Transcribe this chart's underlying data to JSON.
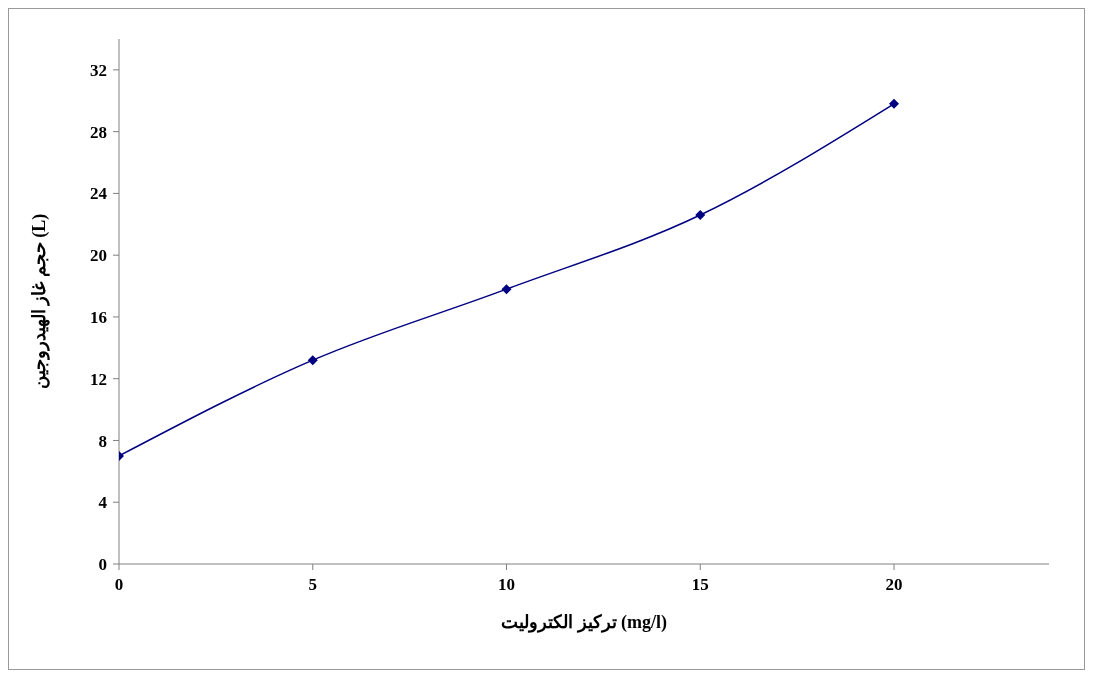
{
  "chart_data": {
    "type": "line",
    "xlabel": "تركيز الكتروليت (mg/l)",
    "ylabel": "حجم غاز الهيدروجين (L)",
    "x": [
      0,
      5,
      10,
      15,
      20
    ],
    "series": [
      {
        "color": "#000080",
        "values": [
          7.0,
          13.2,
          17.8,
          22.6,
          29.8
        ]
      }
    ],
    "xlim": [
      0,
      24
    ],
    "xticks": [
      0,
      5,
      10,
      15,
      20
    ],
    "ylim": [
      0,
      34
    ],
    "yticks": [
      0,
      4,
      8,
      12,
      16,
      20,
      24,
      28,
      32
    ],
    "grid": false,
    "legend": false,
    "marker": "diamond",
    "line_style": "solid"
  }
}
